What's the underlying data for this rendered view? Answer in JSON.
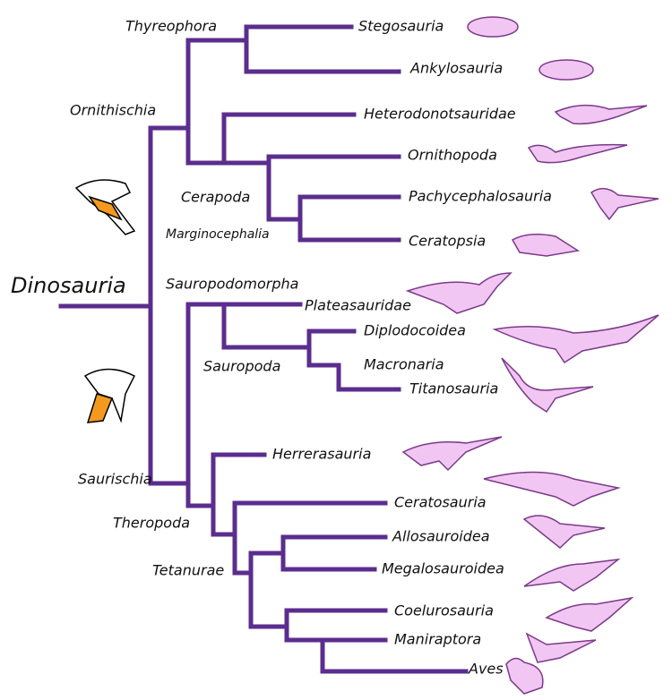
{
  "root": "Dinosauria",
  "clade_labels": [
    "Thyreophora",
    "Ornithischia",
    "Cerapoda",
    "Marginocephalia",
    "Sauropodomorpha",
    "Sauropoda",
    "Saurischia",
    "Theropoda",
    "Tetanurae"
  ],
  "taxa": [
    "Stegosauria",
    "Ankylosauria",
    "Heterodonotsauridae",
    "Ornithopoda",
    "Pachycephalosauria",
    "Ceratopsia",
    "Plateasauridae",
    "Diplodocoidea",
    "Macronaria",
    "Titanosauria",
    "Herrerasauria",
    "Ceratosauria",
    "Allosauroidea",
    "Megalosauroidea",
    "Coelurosauria",
    "Maniraptora",
    "Aves"
  ]
}
